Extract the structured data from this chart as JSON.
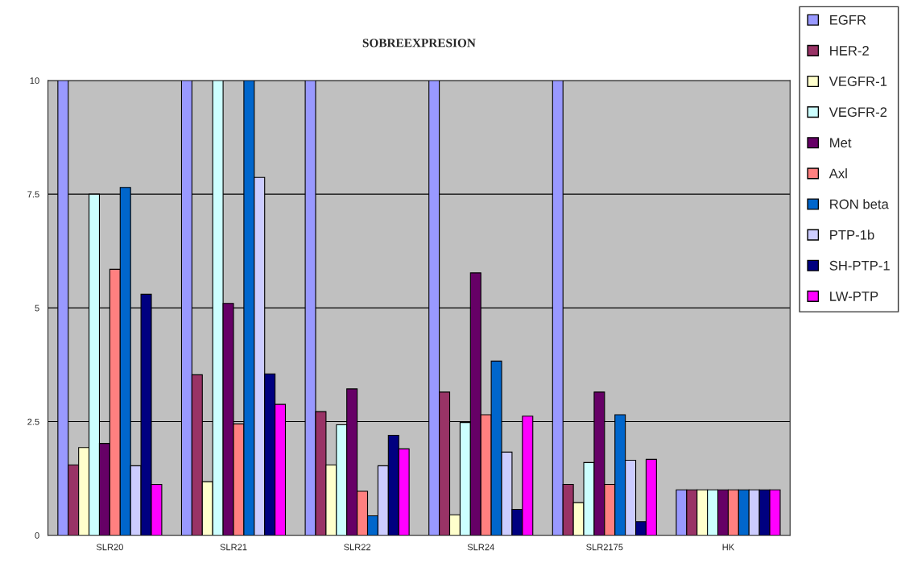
{
  "chart_data": {
    "type": "bar",
    "title": "SOBREEXPRESION",
    "categories": [
      "SLR20",
      "SLR21",
      "SLR22",
      "SLR24",
      "SLR2175",
      "HK"
    ],
    "series": [
      {
        "name": "EGFR",
        "color": "#9999ff",
        "values": [
          10,
          10,
          10,
          10,
          10,
          1
        ]
      },
      {
        "name": "HER-2",
        "color": "#993366",
        "values": [
          1.55,
          3.53,
          2.72,
          3.15,
          1.12,
          1
        ]
      },
      {
        "name": "VEGFR-1",
        "color": "#ffffcc",
        "values": [
          1.93,
          1.18,
          1.55,
          0.45,
          0.72,
          1
        ]
      },
      {
        "name": "VEGFR-2",
        "color": "#ccffff",
        "values": [
          7.5,
          10,
          2.43,
          2.48,
          1.6,
          1
        ]
      },
      {
        "name": "Met",
        "color": "#660066",
        "values": [
          2.02,
          5.1,
          3.22,
          5.77,
          3.15,
          1
        ]
      },
      {
        "name": "Axl",
        "color": "#ff8080",
        "values": [
          5.85,
          2.45,
          0.97,
          2.65,
          1.12,
          1
        ]
      },
      {
        "name": "RON beta",
        "color": "#0066cc",
        "values": [
          7.65,
          10,
          0.43,
          3.83,
          2.65,
          1
        ]
      },
      {
        "name": "PTP-1b",
        "color": "#ccccff",
        "values": [
          1.53,
          7.87,
          1.53,
          1.83,
          1.65,
          1
        ]
      },
      {
        "name": "SH-PTP-1",
        "color": "#000080",
        "values": [
          5.3,
          3.55,
          2.2,
          0.57,
          0.3,
          1
        ]
      },
      {
        "name": "LW-PTP",
        "color": "#ff00ff",
        "values": [
          1.12,
          2.88,
          1.9,
          2.62,
          1.67,
          1
        ]
      }
    ],
    "ylim": [
      0,
      10
    ],
    "yticks": [
      0,
      2.5,
      5,
      7.5,
      10
    ],
    "grid": "y",
    "legend": "top right"
  }
}
